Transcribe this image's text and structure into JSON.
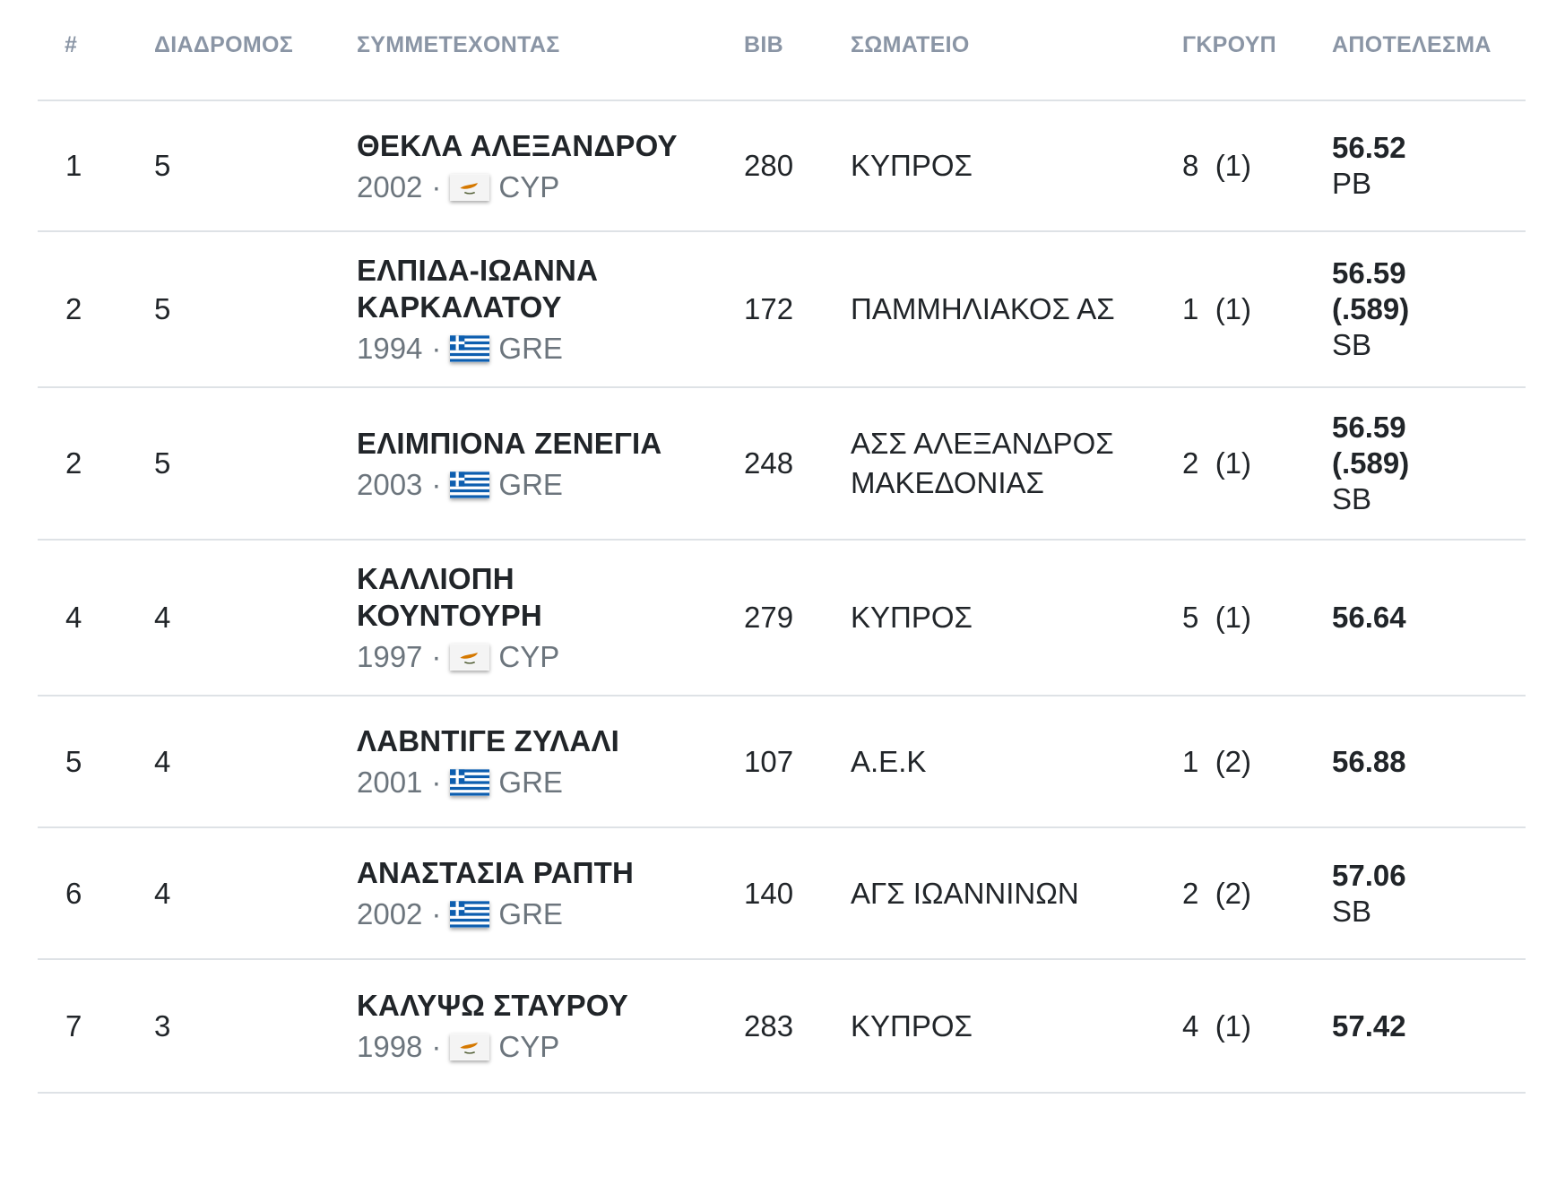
{
  "columns": {
    "rank": "#",
    "lane": "ΔΙΑΔΡΟΜΟΣ",
    "athlete": "ΣΥΜΜΕΤΕΧΟΝΤΑΣ",
    "bib": "BIB",
    "club": "ΣΩΜΑΤΕΙΟ",
    "group": "ΓΚΡΟΥΠ",
    "result": "ΑΠΟΤΕΛΕΣΜΑ"
  },
  "rows": [
    {
      "rank": "1",
      "lane": "5",
      "name": "ΘΕΚΛΑ ΑΛΕΞΑΝΔΡΟΥ",
      "year": "2002",
      "sep": "·",
      "flag": "cyprus-flag-icon",
      "country": "CYP",
      "bib": "280",
      "club": "ΚΥΠΡΟΣ",
      "group": "8  (1)",
      "result": "56.52",
      "detail": "",
      "tag": "PB"
    },
    {
      "rank": "2",
      "lane": "5",
      "name": "ΕΛΠΙΔΑ-ΙΩΑΝΝΑ ΚΑΡΚΑΛΑΤΟΥ",
      "year": "1994",
      "sep": "·",
      "flag": "greece-flag-icon",
      "country": "GRE",
      "bib": "172",
      "club": "ΠΑΜΜΗΛΙΑΚΟΣ ΑΣ",
      "group": "1  (1)",
      "result": "56.59",
      "detail": "(.589)",
      "tag": "SB"
    },
    {
      "rank": "2",
      "lane": "5",
      "name": "ΕΛΙΜΠΙΟΝΑ ΖΕΝΕΓΙΑ",
      "year": "2003",
      "sep": "·",
      "flag": "greece-flag-icon",
      "country": "GRE",
      "bib": "248",
      "club": "ΑΣΣ ΑΛΕΞΑΝΔΡΟΣ ΜΑΚΕΔΟΝΙΑΣ",
      "group": "2  (1)",
      "result": "56.59",
      "detail": "(.589)",
      "tag": "SB"
    },
    {
      "rank": "4",
      "lane": "4",
      "name": "ΚΑΛΛΙΟΠΗ ΚΟΥΝΤΟΥΡΗ",
      "year": "1997",
      "sep": "·",
      "flag": "cyprus-flag-icon",
      "country": "CYP",
      "bib": "279",
      "club": "ΚΥΠΡΟΣ",
      "group": "5  (1)",
      "result": "56.64",
      "detail": "",
      "tag": ""
    },
    {
      "rank": "5",
      "lane": "4",
      "name": "ΛΑΒΝΤΙΓΕ ΖΥΛΑΛΙ",
      "year": "2001",
      "sep": "·",
      "flag": "greece-flag-icon",
      "country": "GRE",
      "bib": "107",
      "club": "Α.Ε.Κ",
      "group": "1  (2)",
      "result": "56.88",
      "detail": "",
      "tag": ""
    },
    {
      "rank": "6",
      "lane": "4",
      "name": "ΑΝΑΣΤΑΣΙΑ ΡΑΠΤΗ",
      "year": "2002",
      "sep": "·",
      "flag": "greece-flag-icon",
      "country": "GRE",
      "bib": "140",
      "club": "ΑΓΣ ΙΩΑΝΝΙΝΩΝ",
      "group": "2  (2)",
      "result": "57.06",
      "detail": "",
      "tag": "SB"
    },
    {
      "rank": "7",
      "lane": "3",
      "name": "ΚΑΛΥΨΩ ΣΤΑΥΡΟΥ",
      "year": "1998",
      "sep": "·",
      "flag": "cyprus-flag-icon",
      "country": "CYP",
      "bib": "283",
      "club": "ΚΥΠΡΟΣ",
      "group": "4  (1)",
      "result": "57.42",
      "detail": "",
      "tag": ""
    }
  ]
}
